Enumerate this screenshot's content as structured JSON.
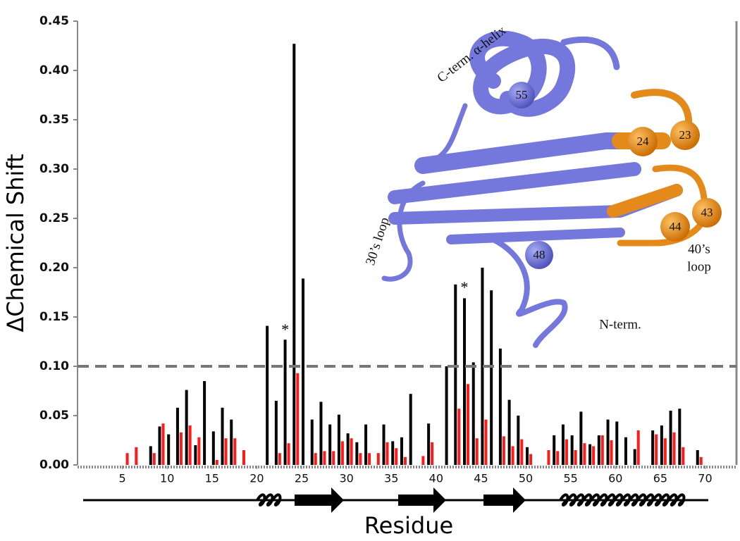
{
  "chart_data": {
    "type": "bar",
    "y_label": "ΔChemical Shift",
    "x_label": "Residue",
    "x": [
      5,
      6,
      7,
      8,
      9,
      10,
      11,
      12,
      13,
      14,
      15,
      16,
      17,
      18,
      19,
      20,
      21,
      22,
      23,
      24,
      25,
      26,
      27,
      28,
      29,
      30,
      31,
      32,
      33,
      34,
      35,
      36,
      37,
      38,
      39,
      40,
      41,
      42,
      43,
      44,
      45,
      46,
      47,
      48,
      49,
      50,
      51,
      52,
      53,
      54,
      55,
      56,
      57,
      58,
      59,
      60,
      61,
      62,
      63,
      64,
      65,
      66,
      67,
      68,
      69
    ],
    "series": [
      {
        "color": "#000000",
        "values": [
          null,
          null,
          null,
          0.019,
          0.039,
          0.031,
          0.058,
          0.076,
          0.02,
          0.085,
          0.034,
          0.058,
          0.046,
          null,
          null,
          null,
          0.141,
          0.065,
          0.127,
          0.427,
          0.189,
          0.046,
          0.064,
          0.041,
          0.051,
          0.032,
          0.023,
          0.041,
          null,
          0.041,
          0.024,
          0.028,
          0.072,
          null,
          0.042,
          null,
          0.1,
          0.183,
          0.169,
          0.104,
          0.2,
          0.177,
          0.118,
          0.066,
          0.05,
          0.018,
          null,
          null,
          0.03,
          0.041,
          0.03,
          0.054,
          0.021,
          0.03,
          0.046,
          0.044,
          0.028,
          0.016,
          null,
          0.035,
          0.04,
          0.055,
          0.057,
          null,
          0.015
        ]
      },
      {
        "color": "#ff1a1a",
        "values": [
          0.012,
          0.018,
          null,
          0.012,
          0.042,
          null,
          0.033,
          0.04,
          0.028,
          null,
          0.005,
          0.027,
          0.027,
          0.015,
          null,
          null,
          null,
          0.012,
          0.022,
          0.093,
          null,
          0.012,
          0.014,
          0.014,
          0.024,
          0.027,
          0.012,
          0.012,
          0.012,
          0.023,
          0.017,
          0.008,
          null,
          0.009,
          0.023,
          null,
          null,
          0.057,
          0.082,
          0.027,
          0.046,
          null,
          0.029,
          0.019,
          0.026,
          0.011,
          null,
          0.015,
          0.014,
          0.026,
          0.015,
          0.022,
          0.019,
          0.03,
          0.025,
          null,
          null,
          0.035,
          null,
          0.031,
          0.027,
          0.033,
          0.018,
          null,
          0.008
        ]
      }
    ],
    "xlim": [
      0,
      73.5
    ],
    "xticks": [
      5,
      10,
      15,
      20,
      25,
      30,
      35,
      40,
      45,
      50,
      55,
      60,
      65,
      70
    ],
    "ylim": [
      0,
      0.45
    ],
    "yticks": [
      {
        "value": 0,
        "label": "0.00"
      },
      {
        "value": 0.05,
        "label": "0.05"
      },
      {
        "value": 0.1,
        "label": "0.10"
      },
      {
        "value": 0.15,
        "label": "0.15"
      },
      {
        "value": 0.2,
        "label": "0.20"
      },
      {
        "value": 0.25,
        "label": "0.25"
      },
      {
        "value": 0.3,
        "label": "0.30"
      },
      {
        "value": 0.35,
        "label": "0.35"
      },
      {
        "value": 0.4,
        "label": "0.40"
      },
      {
        "value": 0.45,
        "label": "0.45"
      }
    ],
    "threshold": 0.1,
    "asterisks": [
      {
        "residue": 23,
        "label": "*"
      },
      {
        "residue": 43,
        "label": "*"
      }
    ],
    "annotations": [
      "C-term. α-helix",
      "30’s loop",
      "40’s",
      "loop",
      "N-term.",
      "55",
      "24",
      "23",
      "44",
      "43",
      "48"
    ]
  }
}
